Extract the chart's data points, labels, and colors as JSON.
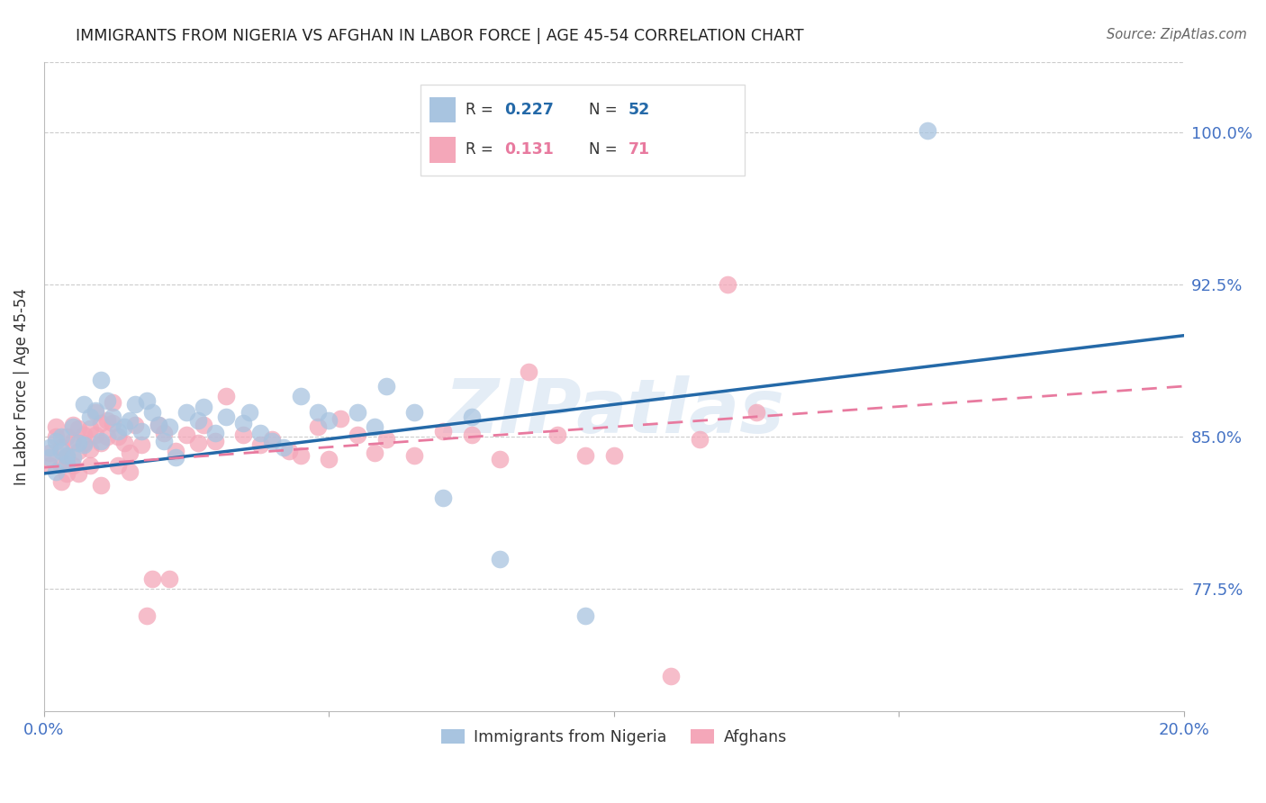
{
  "title": "IMMIGRANTS FROM NIGERIA VS AFGHAN IN LABOR FORCE | AGE 45-54 CORRELATION CHART",
  "source": "Source: ZipAtlas.com",
  "ylabel": "In Labor Force | Age 45-54",
  "xlim": [
    0.0,
    0.2
  ],
  "ylim": [
    0.715,
    1.035
  ],
  "yticks": [
    0.775,
    0.85,
    0.925,
    1.0
  ],
  "ytick_labels": [
    "77.5%",
    "85.0%",
    "92.5%",
    "100.0%"
  ],
  "xticks": [
    0.0,
    0.05,
    0.1,
    0.15,
    0.2
  ],
  "xtick_labels": [
    "0.0%",
    "",
    "",
    "",
    "20.0%"
  ],
  "nigeria_R": "0.227",
  "nigeria_N": "52",
  "afghan_R": "0.131",
  "afghan_N": "71",
  "nigeria_color": "#a8c4e0",
  "afghan_color": "#f4a7b9",
  "nigeria_line_color": "#2469a8",
  "afghan_line_color": "#e87a9f",
  "watermark": "ZIPatlas",
  "nigeria_points": [
    [
      0.001,
      0.84
    ],
    [
      0.001,
      0.845
    ],
    [
      0.002,
      0.833
    ],
    [
      0.002,
      0.848
    ],
    [
      0.003,
      0.85
    ],
    [
      0.003,
      0.843
    ],
    [
      0.004,
      0.837
    ],
    [
      0.004,
      0.841
    ],
    [
      0.005,
      0.855
    ],
    [
      0.005,
      0.84
    ],
    [
      0.006,
      0.847
    ],
    [
      0.007,
      0.846
    ],
    [
      0.007,
      0.866
    ],
    [
      0.008,
      0.86
    ],
    [
      0.009,
      0.863
    ],
    [
      0.01,
      0.878
    ],
    [
      0.01,
      0.848
    ],
    [
      0.011,
      0.868
    ],
    [
      0.012,
      0.86
    ],
    [
      0.013,
      0.853
    ],
    [
      0.014,
      0.855
    ],
    [
      0.015,
      0.858
    ],
    [
      0.016,
      0.866
    ],
    [
      0.017,
      0.853
    ],
    [
      0.018,
      0.868
    ],
    [
      0.019,
      0.862
    ],
    [
      0.02,
      0.856
    ],
    [
      0.021,
      0.848
    ],
    [
      0.022,
      0.855
    ],
    [
      0.023,
      0.84
    ],
    [
      0.025,
      0.862
    ],
    [
      0.027,
      0.858
    ],
    [
      0.028,
      0.865
    ],
    [
      0.03,
      0.852
    ],
    [
      0.032,
      0.86
    ],
    [
      0.035,
      0.857
    ],
    [
      0.036,
      0.862
    ],
    [
      0.038,
      0.852
    ],
    [
      0.04,
      0.848
    ],
    [
      0.042,
      0.845
    ],
    [
      0.045,
      0.87
    ],
    [
      0.048,
      0.862
    ],
    [
      0.05,
      0.858
    ],
    [
      0.055,
      0.862
    ],
    [
      0.058,
      0.855
    ],
    [
      0.06,
      0.875
    ],
    [
      0.065,
      0.862
    ],
    [
      0.07,
      0.82
    ],
    [
      0.075,
      0.86
    ],
    [
      0.08,
      0.79
    ],
    [
      0.095,
      0.762
    ],
    [
      0.155,
      1.001
    ]
  ],
  "afghan_points": [
    [
      0.001,
      0.836
    ],
    [
      0.001,
      0.842
    ],
    [
      0.002,
      0.855
    ],
    [
      0.002,
      0.85
    ],
    [
      0.003,
      0.836
    ],
    [
      0.003,
      0.828
    ],
    [
      0.003,
      0.845
    ],
    [
      0.004,
      0.85
    ],
    [
      0.004,
      0.84
    ],
    [
      0.004,
      0.832
    ],
    [
      0.005,
      0.856
    ],
    [
      0.005,
      0.848
    ],
    [
      0.005,
      0.836
    ],
    [
      0.006,
      0.854
    ],
    [
      0.006,
      0.843
    ],
    [
      0.006,
      0.832
    ],
    [
      0.007,
      0.851
    ],
    [
      0.007,
      0.847
    ],
    [
      0.008,
      0.854
    ],
    [
      0.008,
      0.844
    ],
    [
      0.008,
      0.836
    ],
    [
      0.009,
      0.862
    ],
    [
      0.009,
      0.851
    ],
    [
      0.01,
      0.857
    ],
    [
      0.01,
      0.847
    ],
    [
      0.01,
      0.826
    ],
    [
      0.011,
      0.858
    ],
    [
      0.011,
      0.85
    ],
    [
      0.012,
      0.867
    ],
    [
      0.012,
      0.857
    ],
    [
      0.013,
      0.85
    ],
    [
      0.013,
      0.836
    ],
    [
      0.014,
      0.847
    ],
    [
      0.015,
      0.842
    ],
    [
      0.015,
      0.833
    ],
    [
      0.016,
      0.856
    ],
    [
      0.017,
      0.846
    ],
    [
      0.018,
      0.762
    ],
    [
      0.019,
      0.78
    ],
    [
      0.02,
      0.856
    ],
    [
      0.021,
      0.852
    ],
    [
      0.022,
      0.78
    ],
    [
      0.023,
      0.843
    ],
    [
      0.025,
      0.851
    ],
    [
      0.027,
      0.847
    ],
    [
      0.028,
      0.856
    ],
    [
      0.03,
      0.848
    ],
    [
      0.032,
      0.87
    ],
    [
      0.035,
      0.851
    ],
    [
      0.038,
      0.846
    ],
    [
      0.04,
      0.849
    ],
    [
      0.043,
      0.843
    ],
    [
      0.045,
      0.841
    ],
    [
      0.048,
      0.855
    ],
    [
      0.05,
      0.839
    ],
    [
      0.052,
      0.859
    ],
    [
      0.055,
      0.851
    ],
    [
      0.058,
      0.842
    ],
    [
      0.06,
      0.849
    ],
    [
      0.065,
      0.841
    ],
    [
      0.07,
      0.853
    ],
    [
      0.075,
      0.851
    ],
    [
      0.08,
      0.839
    ],
    [
      0.085,
      0.882
    ],
    [
      0.09,
      0.851
    ],
    [
      0.095,
      0.841
    ],
    [
      0.1,
      0.841
    ],
    [
      0.11,
      0.732
    ],
    [
      0.115,
      0.849
    ],
    [
      0.12,
      0.925
    ],
    [
      0.125,
      0.862
    ]
  ]
}
